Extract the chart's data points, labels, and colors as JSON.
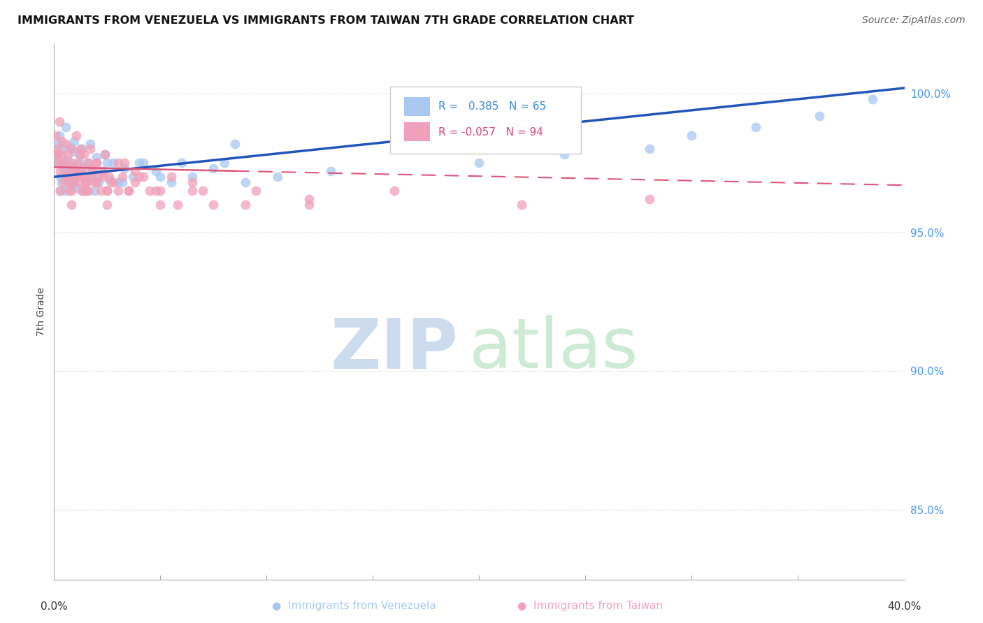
{
  "title": "IMMIGRANTS FROM VENEZUELA VS IMMIGRANTS FROM TAIWAN 7TH GRADE CORRELATION CHART",
  "source": "Source: ZipAtlas.com",
  "ylabel": "7th Grade",
  "y_ticks": [
    85.0,
    90.0,
    95.0,
    100.0
  ],
  "xmin": 0.0,
  "xmax": 40.0,
  "ymin": 82.5,
  "ymax": 101.8,
  "blue_color": "#a8c8f0",
  "pink_color": "#f0a0b8",
  "blue_line_color": "#2255bb",
  "pink_line_color": "#dd5577",
  "blue_R": 0.385,
  "blue_N": 65,
  "pink_R": -0.057,
  "pink_N": 94,
  "blue_scatter_x": [
    0.1,
    0.15,
    0.2,
    0.25,
    0.3,
    0.35,
    0.4,
    0.45,
    0.5,
    0.55,
    0.6,
    0.65,
    0.7,
    0.75,
    0.8,
    0.85,
    0.9,
    0.95,
    1.0,
    1.1,
    1.2,
    1.3,
    1.4,
    1.5,
    1.6,
    1.7,
    1.8,
    1.9,
    2.0,
    2.2,
    2.4,
    2.6,
    2.8,
    3.0,
    3.3,
    3.7,
    4.2,
    4.8,
    5.5,
    6.5,
    7.5,
    8.0,
    9.0,
    10.5,
    13.0,
    20.0,
    24.0,
    28.0,
    30.0,
    33.0,
    36.0,
    38.5,
    0.3,
    0.6,
    0.9,
    1.2,
    1.5,
    1.8,
    2.1,
    2.5,
    3.2,
    4.0,
    5.0,
    6.0,
    8.5
  ],
  "blue_scatter_y": [
    97.8,
    98.2,
    97.5,
    98.5,
    97.0,
    96.8,
    98.0,
    97.3,
    96.5,
    98.8,
    97.6,
    97.2,
    96.9,
    98.1,
    97.4,
    96.7,
    97.9,
    98.3,
    97.1,
    96.6,
    97.8,
    98.0,
    97.3,
    96.8,
    97.5,
    98.2,
    97.0,
    96.5,
    97.7,
    97.2,
    97.8,
    96.9,
    97.5,
    96.8,
    97.3,
    97.0,
    97.5,
    97.2,
    96.8,
    97.0,
    97.3,
    97.5,
    96.8,
    97.0,
    97.2,
    97.5,
    97.8,
    98.0,
    98.5,
    98.8,
    99.2,
    99.8,
    96.5,
    97.0,
    96.8,
    97.5,
    96.5,
    97.2,
    96.8,
    97.5,
    96.8,
    97.5,
    97.0,
    97.5,
    98.2
  ],
  "pink_scatter_x": [
    0.05,
    0.1,
    0.15,
    0.2,
    0.25,
    0.3,
    0.35,
    0.4,
    0.45,
    0.5,
    0.55,
    0.6,
    0.65,
    0.7,
    0.75,
    0.8,
    0.85,
    0.9,
    0.95,
    1.0,
    1.05,
    1.1,
    1.15,
    1.2,
    1.25,
    1.3,
    1.35,
    1.4,
    1.45,
    1.5,
    1.6,
    1.7,
    1.8,
    1.9,
    2.0,
    2.1,
    2.2,
    2.3,
    2.4,
    2.5,
    2.6,
    2.8,
    3.0,
    3.2,
    3.5,
    3.8,
    4.2,
    4.8,
    5.5,
    6.5,
    0.2,
    0.4,
    0.6,
    0.8,
    1.0,
    1.2,
    1.4,
    1.6,
    1.8,
    2.0,
    2.3,
    2.7,
    3.3,
    4.0,
    5.0,
    0.3,
    0.5,
    0.7,
    0.9,
    1.1,
    1.3,
    1.5,
    1.7,
    2.0,
    2.5,
    3.0,
    3.8,
    4.5,
    5.8,
    7.5,
    9.5,
    12.0,
    16.0,
    22.0,
    28.0,
    7.0,
    0.8,
    1.5,
    2.5,
    3.5,
    5.0,
    6.5,
    9.0,
    12.0
  ],
  "pink_scatter_y": [
    98.5,
    97.8,
    98.0,
    97.5,
    99.0,
    97.2,
    98.3,
    97.8,
    96.8,
    97.5,
    98.2,
    97.0,
    97.8,
    96.5,
    97.2,
    98.0,
    97.5,
    96.8,
    97.3,
    97.0,
    98.5,
    97.5,
    96.8,
    97.2,
    98.0,
    97.3,
    96.5,
    97.8,
    97.0,
    96.8,
    97.5,
    98.0,
    97.2,
    96.8,
    97.5,
    97.0,
    96.5,
    97.2,
    97.8,
    96.5,
    97.0,
    96.8,
    97.5,
    97.0,
    96.5,
    97.2,
    97.0,
    96.5,
    97.0,
    96.8,
    97.8,
    97.5,
    97.0,
    96.5,
    97.2,
    97.8,
    97.0,
    96.5,
    97.3,
    97.5,
    97.0,
    96.8,
    97.5,
    97.0,
    96.5,
    96.5,
    97.0,
    96.8,
    97.2,
    97.0,
    96.5,
    96.8,
    97.0,
    96.8,
    96.5,
    96.5,
    96.8,
    96.5,
    96.0,
    96.0,
    96.5,
    96.0,
    96.5,
    96.0,
    96.2,
    96.5,
    96.0,
    96.5,
    96.0,
    96.5,
    96.0,
    96.5,
    96.0,
    96.2
  ],
  "pink_solid_xmax": 8.5,
  "watermark_zip_color": "#c8d8ee",
  "watermark_atlas_color": "#c8e8d0",
  "grid_color": "#dddddd",
  "bottom_legend_blue": "Immigrants from Venezuela",
  "bottom_legend_pink": "Immigrants from Taiwan"
}
